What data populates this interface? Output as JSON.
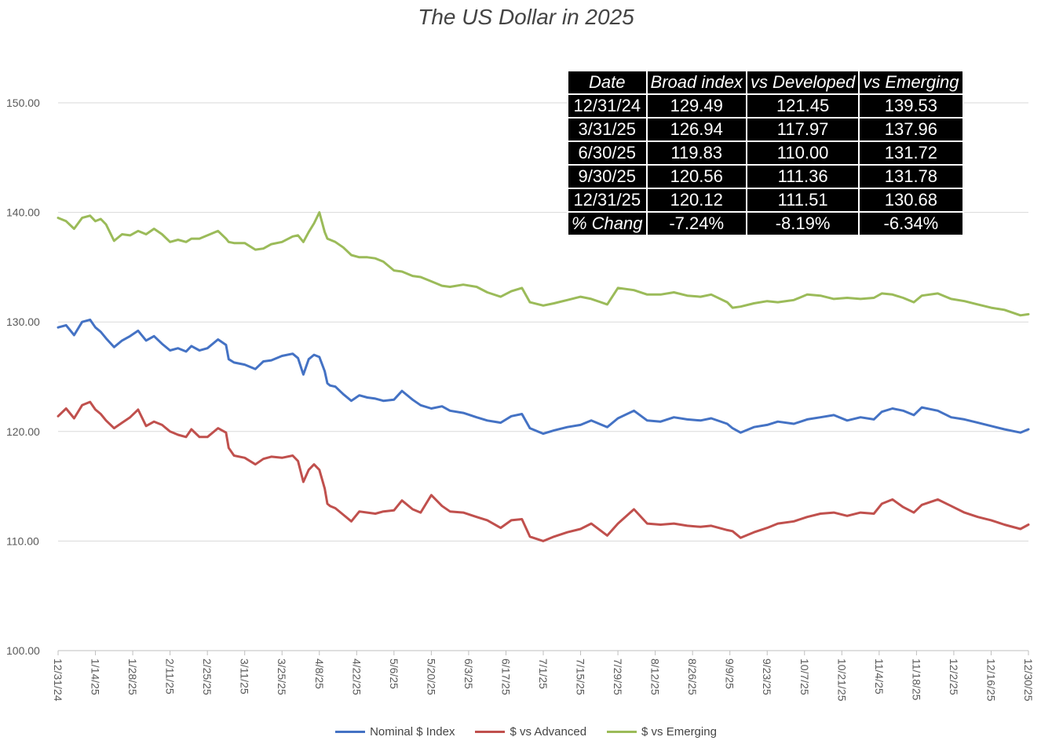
{
  "chart_data": {
    "type": "line",
    "title": "The US Dollar in 2025",
    "xlabel": "",
    "ylabel": "",
    "ylim": [
      100,
      150
    ],
    "yticks": [
      "100.00",
      "110.00",
      "120.00",
      "130.00",
      "140.00",
      "150.00"
    ],
    "yticks_values": [
      100,
      110,
      120,
      130,
      140,
      150
    ],
    "x_tick_labels": [
      "12/31/24",
      "1/14/25",
      "1/28/25",
      "2/11/25",
      "2/25/25",
      "3/11/25",
      "3/25/25",
      "4/8/25",
      "4/22/25",
      "5/6/25",
      "5/20/25",
      "6/3/25",
      "6/17/25",
      "7/1/25",
      "7/15/25",
      "7/29/25",
      "8/12/25",
      "8/26/25",
      "9/9/25",
      "9/23/25",
      "10/7/25",
      "10/21/25",
      "11/4/25",
      "11/18/25",
      "12/2/25",
      "12/16/25",
      "12/30/25"
    ],
    "x_tick_days": [
      0,
      14,
      28,
      42,
      56,
      70,
      84,
      98,
      112,
      126,
      140,
      154,
      168,
      182,
      196,
      210,
      224,
      238,
      252,
      266,
      280,
      294,
      308,
      322,
      336,
      350,
      364
    ],
    "x_range": [
      0,
      364
    ],
    "grid": true,
    "legend_position": "bottom",
    "series": [
      {
        "name": "Nominal $ Index",
        "color": "#4472c4",
        "x": [
          0,
          3,
          6,
          9,
          12,
          14,
          16,
          18,
          21,
          24,
          27,
          30,
          33,
          36,
          39,
          42,
          45,
          48,
          50,
          53,
          56,
          60,
          63,
          64,
          66,
          70,
          74,
          77,
          80,
          84,
          88,
          90,
          92,
          94,
          96,
          98,
          100,
          101,
          102,
          104,
          107,
          110,
          113,
          116,
          119,
          122,
          126,
          129,
          133,
          136,
          140,
          144,
          147,
          152,
          157,
          161,
          166,
          170,
          174,
          177,
          182,
          186,
          191,
          196,
          200,
          206,
          210,
          216,
          221,
          226,
          231,
          236,
          241,
          245,
          251,
          253,
          256,
          261,
          266,
          270,
          276,
          281,
          286,
          291,
          296,
          301,
          306,
          309,
          313,
          317,
          321,
          324,
          330,
          335,
          340,
          345,
          350,
          355,
          361,
          364
        ],
        "values": [
          129.5,
          129.7,
          128.8,
          130.0,
          130.2,
          129.5,
          129.1,
          128.5,
          127.7,
          128.3,
          128.7,
          129.2,
          128.3,
          128.7,
          128.0,
          127.4,
          127.6,
          127.3,
          127.8,
          127.4,
          127.6,
          128.4,
          127.9,
          126.6,
          126.3,
          126.1,
          125.7,
          126.4,
          126.5,
          126.9,
          127.1,
          126.7,
          125.2,
          126.6,
          127.0,
          126.8,
          125.5,
          124.4,
          124.2,
          124.1,
          123.4,
          122.8,
          123.3,
          123.1,
          123.0,
          122.8,
          122.9,
          123.7,
          122.9,
          122.4,
          122.1,
          122.3,
          121.9,
          121.7,
          121.3,
          121.0,
          120.8,
          121.4,
          121.6,
          120.3,
          119.8,
          120.1,
          120.4,
          120.6,
          121.0,
          120.4,
          121.2,
          121.9,
          121.0,
          120.9,
          121.3,
          121.1,
          121.0,
          121.2,
          120.7,
          120.3,
          119.9,
          120.4,
          120.6,
          120.9,
          120.7,
          121.1,
          121.3,
          121.5,
          121.0,
          121.3,
          121.1,
          121.8,
          122.1,
          121.9,
          121.5,
          122.2,
          121.9,
          121.3,
          121.1,
          120.8,
          120.5,
          120.2,
          119.9,
          120.2
        ]
      },
      {
        "name": "$ vs Advanced",
        "color": "#c0504d",
        "x": [
          0,
          3,
          6,
          9,
          12,
          14,
          16,
          18,
          21,
          24,
          27,
          30,
          33,
          36,
          39,
          42,
          45,
          48,
          50,
          53,
          56,
          60,
          63,
          64,
          66,
          70,
          74,
          77,
          80,
          84,
          88,
          90,
          92,
          94,
          96,
          98,
          100,
          101,
          102,
          104,
          107,
          110,
          113,
          116,
          119,
          122,
          126,
          129,
          133,
          136,
          140,
          144,
          147,
          152,
          157,
          161,
          166,
          170,
          174,
          177,
          182,
          186,
          191,
          196,
          200,
          206,
          210,
          216,
          221,
          226,
          231,
          236,
          241,
          245,
          251,
          253,
          256,
          261,
          266,
          270,
          276,
          281,
          286,
          291,
          296,
          301,
          306,
          309,
          313,
          317,
          321,
          324,
          330,
          335,
          340,
          345,
          350,
          355,
          361,
          364
        ],
        "values": [
          121.4,
          122.1,
          121.2,
          122.4,
          122.7,
          122.0,
          121.6,
          121.0,
          120.3,
          120.8,
          121.3,
          122.0,
          120.5,
          120.9,
          120.6,
          120.0,
          119.7,
          119.5,
          120.2,
          119.5,
          119.5,
          120.3,
          119.9,
          118.5,
          117.8,
          117.6,
          117.0,
          117.5,
          117.7,
          117.6,
          117.8,
          117.3,
          115.4,
          116.5,
          117.0,
          116.5,
          114.8,
          113.4,
          113.2,
          113.0,
          112.4,
          111.8,
          112.7,
          112.6,
          112.5,
          112.7,
          112.8,
          113.7,
          112.9,
          112.6,
          114.2,
          113.2,
          112.7,
          112.6,
          112.2,
          111.9,
          111.2,
          111.9,
          112.0,
          110.4,
          110.0,
          110.4,
          110.8,
          111.1,
          111.6,
          110.5,
          111.6,
          112.9,
          111.6,
          111.5,
          111.6,
          111.4,
          111.3,
          111.4,
          111.0,
          110.9,
          110.3,
          110.8,
          111.2,
          111.6,
          111.8,
          112.2,
          112.5,
          112.6,
          112.3,
          112.6,
          112.5,
          113.4,
          113.8,
          113.1,
          112.6,
          113.3,
          113.8,
          113.2,
          112.6,
          112.2,
          111.9,
          111.5,
          111.1,
          111.5
        ]
      },
      {
        "name": "$ vs Emerging",
        "color": "#9bbb59",
        "x": [
          0,
          3,
          6,
          9,
          12,
          14,
          16,
          18,
          21,
          24,
          27,
          30,
          33,
          36,
          39,
          42,
          45,
          48,
          50,
          53,
          56,
          60,
          63,
          64,
          66,
          70,
          74,
          77,
          80,
          84,
          88,
          90,
          92,
          94,
          96,
          98,
          100,
          101,
          102,
          104,
          107,
          110,
          113,
          116,
          119,
          122,
          126,
          129,
          133,
          136,
          140,
          144,
          147,
          152,
          157,
          161,
          166,
          170,
          174,
          177,
          182,
          186,
          191,
          196,
          200,
          206,
          210,
          216,
          221,
          226,
          231,
          236,
          241,
          245,
          251,
          253,
          256,
          261,
          266,
          270,
          276,
          281,
          286,
          291,
          296,
          301,
          306,
          309,
          313,
          317,
          321,
          324,
          330,
          335,
          340,
          345,
          350,
          355,
          361,
          364
        ],
        "values": [
          139.5,
          139.2,
          138.5,
          139.5,
          139.7,
          139.2,
          139.4,
          138.9,
          137.4,
          138.0,
          137.9,
          138.3,
          138.0,
          138.5,
          138.0,
          137.3,
          137.5,
          137.3,
          137.6,
          137.6,
          137.9,
          138.3,
          137.6,
          137.3,
          137.2,
          137.2,
          136.6,
          136.7,
          137.1,
          137.3,
          137.8,
          137.9,
          137.3,
          138.2,
          139.0,
          140.0,
          138.2,
          137.6,
          137.5,
          137.3,
          136.8,
          136.1,
          135.9,
          135.9,
          135.8,
          135.5,
          134.7,
          134.6,
          134.2,
          134.1,
          133.7,
          133.3,
          133.2,
          133.4,
          133.2,
          132.7,
          132.3,
          132.8,
          133.1,
          131.8,
          131.5,
          131.7,
          132.0,
          132.3,
          132.1,
          131.6,
          133.1,
          132.9,
          132.5,
          132.5,
          132.7,
          132.4,
          132.3,
          132.5,
          131.8,
          131.3,
          131.4,
          131.7,
          131.9,
          131.8,
          132.0,
          132.5,
          132.4,
          132.1,
          132.2,
          132.1,
          132.2,
          132.6,
          132.5,
          132.2,
          131.8,
          132.4,
          132.6,
          132.1,
          131.9,
          131.6,
          131.3,
          131.1,
          130.6,
          130.7
        ]
      }
    ]
  },
  "table": {
    "headers": [
      "Date",
      "Broad index",
      "vs Developed",
      "vs Emerging"
    ],
    "rows": [
      [
        "12/31/24",
        "129.49",
        "121.45",
        "139.53"
      ],
      [
        "3/31/25",
        "126.94",
        "117.97",
        "137.96"
      ],
      [
        "6/30/25",
        "119.83",
        "110.00",
        "131.72"
      ],
      [
        "9/30/25",
        "120.56",
        "111.36",
        "131.78"
      ],
      [
        "12/31/25",
        "120.12",
        "111.51",
        "130.68"
      ],
      [
        "% Chang",
        "-7.24%",
        "-8.19%",
        "-6.34%"
      ]
    ]
  },
  "legend": {
    "items": [
      "Nominal $ Index",
      "$ vs Advanced",
      "$ vs Emerging"
    ]
  },
  "colors": {
    "grid": "#d9d9d9",
    "axis_text": "#595959"
  }
}
